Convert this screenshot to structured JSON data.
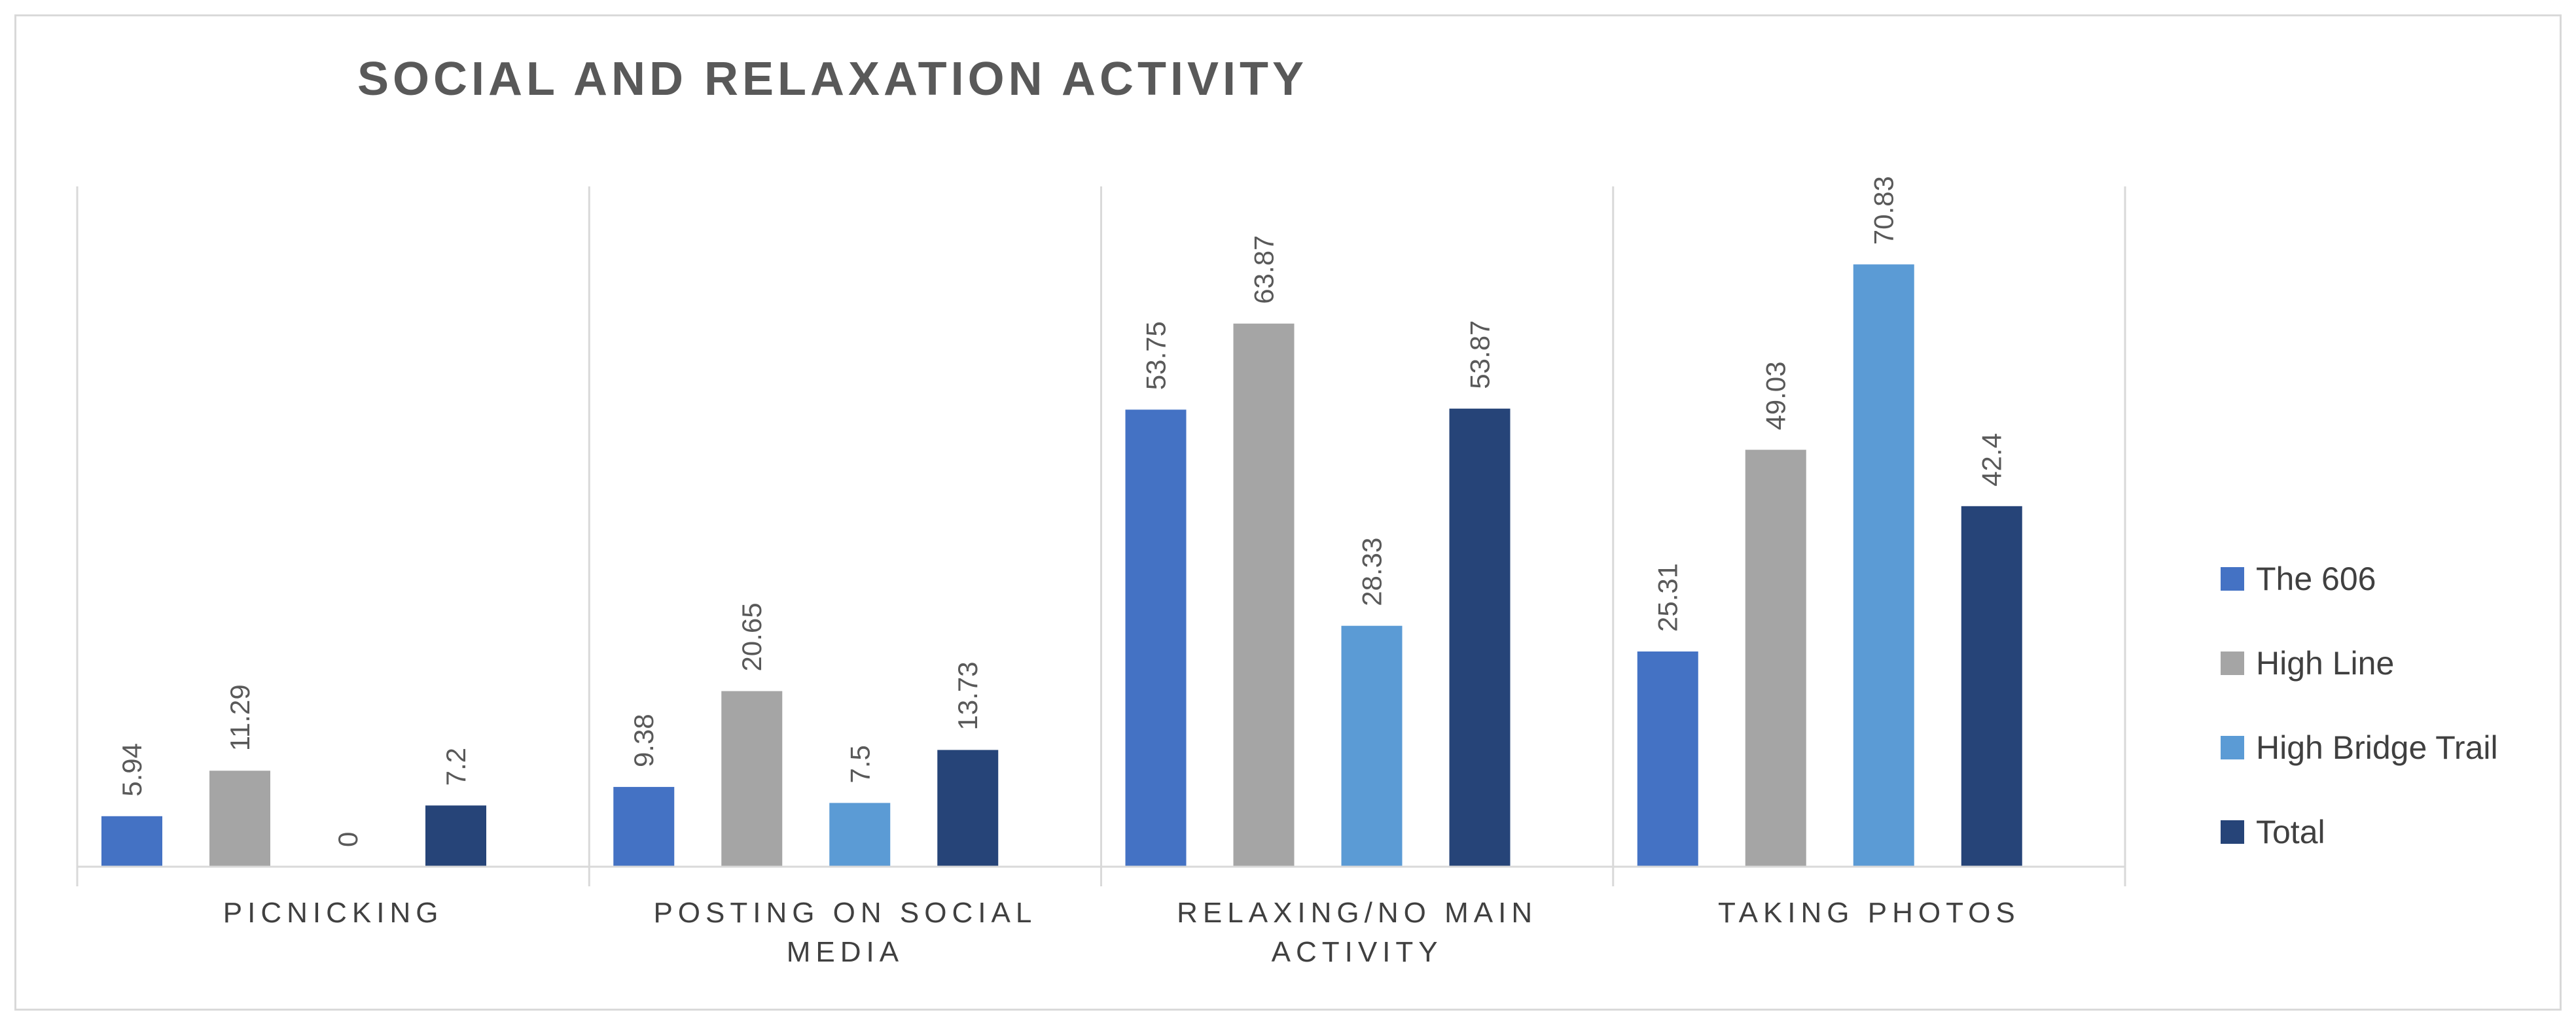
{
  "chart_data": {
    "type": "bar",
    "title": "SOCIAL AND RELAXATION ACTIVITY",
    "categories": [
      [
        "PICNICKING"
      ],
      [
        "POSTING ON SOCIAL",
        "MEDIA"
      ],
      [
        "RELAXING/NO MAIN",
        "ACTIVITY"
      ],
      [
        "TAKING PHOTOS"
      ]
    ],
    "series": [
      {
        "name": "The 606",
        "color": "#4472c4",
        "values": [
          5.94,
          9.38,
          53.75,
          25.31
        ],
        "labels": [
          "5.94",
          "9.38",
          "53.75",
          "25.31"
        ]
      },
      {
        "name": "High Line",
        "color": "#a5a5a5",
        "values": [
          11.29,
          20.65,
          63.87,
          49.03
        ],
        "labels": [
          "11.29",
          "20.65",
          "63.87",
          "49.03"
        ]
      },
      {
        "name": "High Bridge Trail",
        "color": "#5b9bd5",
        "values": [
          0,
          7.5,
          28.33,
          70.83
        ],
        "labels": [
          "0",
          "7.5",
          "28.33",
          "70.83"
        ]
      },
      {
        "name": "Total",
        "color": "#264478",
        "values": [
          7.2,
          13.73,
          53.87,
          42.4
        ],
        "labels": [
          "7.2",
          "13.73",
          "53.87",
          "42.4"
        ]
      }
    ],
    "ylim": [
      0,
      80
    ],
    "xlabel": "",
    "ylabel": "",
    "legend_position": "right",
    "grid": false
  }
}
